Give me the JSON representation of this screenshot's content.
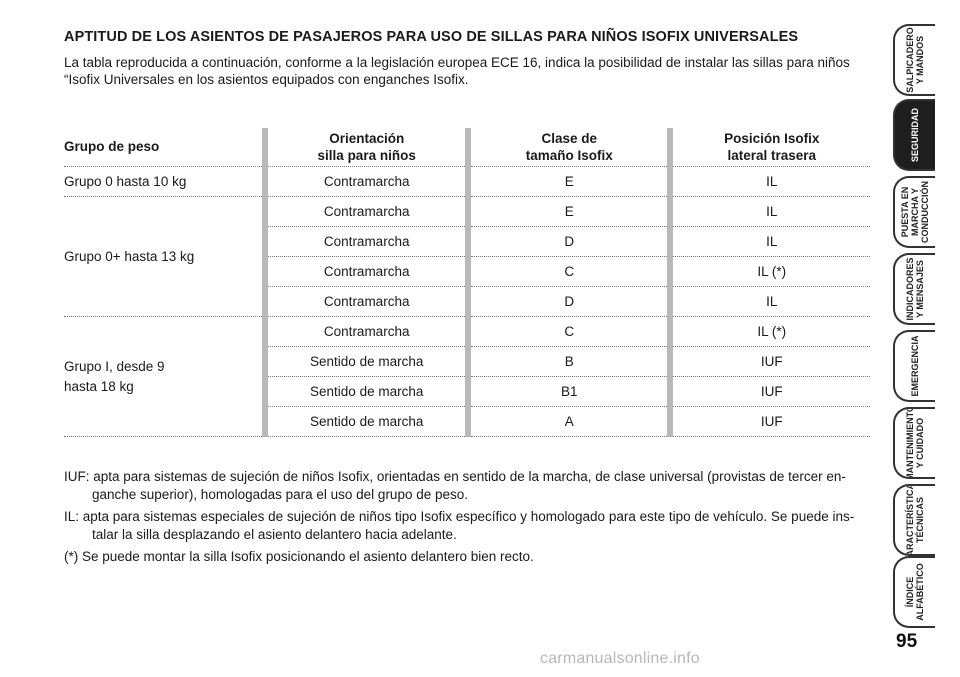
{
  "title": "APTITUD DE LOS ASIENTOS DE PASAJEROS PARA USO DE SILLAS PARA NIÑOS ISOFIX UNIVERSALES",
  "intro": {
    "line1": "La tabla reproducida a continuación, conforme a la legislación europea ECE 16, indica la posibilidad de instalar las sillas para niños",
    "line2": "“Isofix Universales en los asientos equipados con enganches Isofix."
  },
  "table": {
    "headers": {
      "group": "Grupo de peso",
      "orientation": [
        "Orientación",
        "silla para niños"
      ],
      "size_class": [
        "Clase de",
        "tamaño Isofix"
      ],
      "position": [
        "Posición Isofix",
        "lateral trasera"
      ]
    },
    "groups": [
      {
        "label": [
          "Grupo 0 hasta 10 kg"
        ]
      },
      {
        "label": [
          "Grupo 0+ hasta 13 kg"
        ]
      },
      {
        "label": [
          "Grupo I, desde 9",
          "hasta 18 kg"
        ]
      }
    ],
    "rows": [
      [
        "Contramarcha",
        "E",
        "IL"
      ],
      [
        "Contramarcha",
        "E",
        "IL"
      ],
      [
        "Contramarcha",
        "D",
        "IL"
      ],
      [
        "Contramarcha",
        "C",
        "IL (*)"
      ],
      [
        "Contramarcha",
        "D",
        "IL"
      ],
      [
        "Contramarcha",
        "C",
        "IL (*)"
      ],
      [
        "Sentido de marcha",
        "B",
        "IUF"
      ],
      [
        "Sentido de marcha",
        "B1",
        "IUF"
      ],
      [
        "Sentido de marcha",
        "A",
        "IUF"
      ]
    ]
  },
  "notes": {
    "iuf": {
      "line1": "IUF: apta para sistemas de sujeción de niños Isofix, orientadas en sentido de la marcha, de clase universal (provistas de tercer en-",
      "line2": "ganche superior), homologadas para el uso del grupo de peso."
    },
    "il": {
      "line1": "IL: apta para sistemas especiales de sujeción de niños tipo Isofix específico y homologado para este tipo de vehículo. Se puede ins-",
      "line2": "talar la silla desplazando el asiento delantero hacia adelante."
    },
    "star": "(*) Se puede montar la silla Isofix posicionando el asiento delantero bien recto."
  },
  "tabs": [
    {
      "lines": [
        "SALPICADERO",
        "Y MANDOS"
      ],
      "active": false
    },
    {
      "lines": [
        "SEGURIDAD"
      ],
      "active": true
    },
    {
      "lines": [
        "PUESTA EN",
        "MARCHA Y",
        "CONDUCCIÓN"
      ],
      "active": false
    },
    {
      "lines": [
        "INDICADORES",
        "Y MENSAJES"
      ],
      "active": false
    },
    {
      "lines": [
        "EMERGENCIA"
      ],
      "active": false
    },
    {
      "lines": [
        "MANTENIMIENTO",
        "Y CUIDADO"
      ],
      "active": false
    },
    {
      "lines": [
        "CARACTERÍSTICAS",
        "TÉCNICAS"
      ],
      "active": false
    },
    {
      "lines": [
        "ÍNDICE",
        "ALFABÉTICO"
      ],
      "active": false
    }
  ],
  "page_number": "95",
  "watermark": "carmanualsonline.info",
  "colors": {
    "active_tab": "#1e1e1e",
    "column_rule": "#b9b9b9",
    "watermark": "#b8b8b8"
  }
}
